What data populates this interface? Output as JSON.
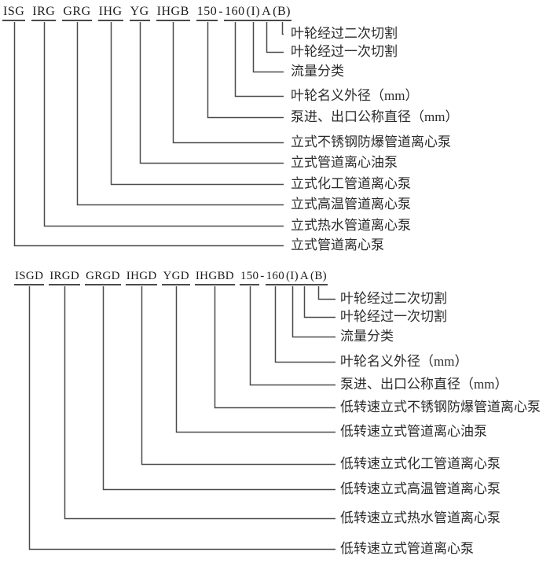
{
  "page": {
    "background_color": "#ffffff",
    "line_color": "#4a4a4a",
    "code_text_color": "#1c1c1c",
    "label_text_color": "#2b2b2b"
  },
  "diagrams": [
    {
      "id": "standard-speed",
      "code_string": "ISG IRG GRG IHG YG IHGB 150-160(I)A(B)",
      "code_tokens": [
        {
          "text": "ISG",
          "underlined": true,
          "space_after": true
        },
        {
          "text": "IRG",
          "underlined": true,
          "space_after": true
        },
        {
          "text": "GRG",
          "underlined": true,
          "space_after": true
        },
        {
          "text": "IHG",
          "underlined": true,
          "space_after": true
        },
        {
          "text": "YG",
          "underlined": true,
          "space_after": true
        },
        {
          "text": "IHGB",
          "underlined": true,
          "space_after": true
        },
        {
          "text": "150",
          "underlined": true,
          "space_after": false
        },
        {
          "text": "-",
          "underlined": false,
          "space_after": false
        },
        {
          "text": "160",
          "underlined": true,
          "space_after": false
        },
        {
          "text": "(I)",
          "underlined": true,
          "space_after": false
        },
        {
          "text": "A",
          "underlined": true,
          "space_after": false
        },
        {
          "text": "(B)",
          "underlined": true,
          "space_after": false
        }
      ],
      "labels": [
        {
          "text": "叶轮经过二次切割",
          "token_index": 11
        },
        {
          "text": "叶轮经过一次切割",
          "token_index": 10
        },
        {
          "text": "流量分类",
          "token_index": 9
        },
        {
          "text": "叶轮名义外径（mm）",
          "token_index": 8
        },
        {
          "text": "泵进、出口公称直径（mm）",
          "token_index": 6
        },
        {
          "text": "立式不锈钢防爆管道离心泵",
          "token_index": 5
        },
        {
          "text": "立式管道离心油泵",
          "token_index": 4
        },
        {
          "text": "立式化工管道离心泵",
          "token_index": 3
        },
        {
          "text": "立式高温管道离心泵",
          "token_index": 2
        },
        {
          "text": "立式热水管道离心泵",
          "token_index": 1
        },
        {
          "text": "立式管道离心泵",
          "token_index": 0
        }
      ]
    },
    {
      "id": "low-speed",
      "code_string": "ISGD IRGD GRGD IHGD YGD IHGBD 150-160(I)A(B)",
      "code_tokens": [
        {
          "text": "ISGD",
          "underlined": true,
          "space_after": true
        },
        {
          "text": "IRGD",
          "underlined": true,
          "space_after": true
        },
        {
          "text": "GRGD",
          "underlined": true,
          "space_after": true
        },
        {
          "text": "IHGD",
          "underlined": true,
          "space_after": true
        },
        {
          "text": "YGD",
          "underlined": true,
          "space_after": true
        },
        {
          "text": "IHGBD",
          "underlined": true,
          "space_after": true
        },
        {
          "text": "150",
          "underlined": true,
          "space_after": false
        },
        {
          "text": "-",
          "underlined": false,
          "space_after": false
        },
        {
          "text": "160",
          "underlined": true,
          "space_after": false
        },
        {
          "text": "(I)",
          "underlined": true,
          "space_after": false
        },
        {
          "text": "A",
          "underlined": true,
          "space_after": false
        },
        {
          "text": "(B)",
          "underlined": true,
          "space_after": false
        }
      ],
      "labels": [
        {
          "text": "叶轮经过二次切割",
          "token_index": 11
        },
        {
          "text": "叶轮经过一次切割",
          "token_index": 10
        },
        {
          "text": "流量分类",
          "token_index": 9
        },
        {
          "text": "叶轮名义外径（mm）",
          "token_index": 8
        },
        {
          "text": "泵进、出口公称直径（mm）",
          "token_index": 6
        },
        {
          "text": "低转速立式不锈钢防爆管道离心泵",
          "token_index": 5
        },
        {
          "text": "低转速立式管道离心油泵",
          "token_index": 4
        },
        {
          "text": "低转速立式化工管道离心泵",
          "token_index": 3
        },
        {
          "text": "低转速立式高温管道离心泵",
          "token_index": 2
        },
        {
          "text": "低转速立式热水管道离心泵",
          "token_index": 1
        },
        {
          "text": "低转速立式管道离心泵",
          "token_index": 0
        }
      ]
    }
  ]
}
